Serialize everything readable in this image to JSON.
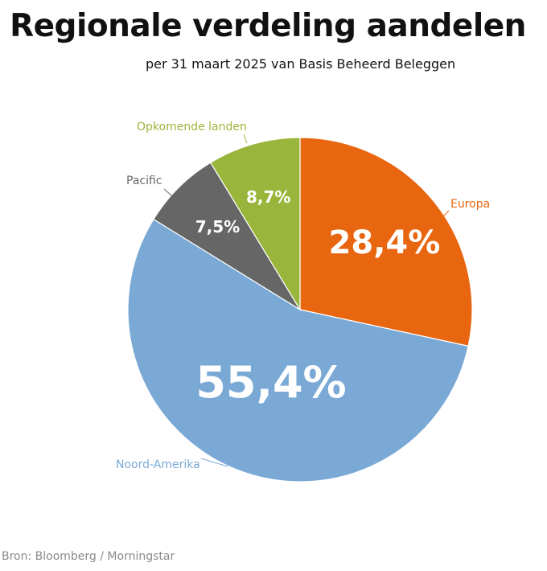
{
  "title": "Regionale verdeling aandelen",
  "subtitle": "per 31 maart 2025 van Basis Beheerd Beleggen",
  "source": "Bron: Bloomberg / Morningstar",
  "chart_data": {
    "type": "pie",
    "title": "Regionale verdeling aandelen",
    "slices": [
      {
        "name": "Europa",
        "value": 28.4,
        "label": "28,4%",
        "color": "#E96610"
      },
      {
        "name": "Noord-Amerika",
        "value": 55.4,
        "label": "55,4%",
        "color": "#7BA9D6"
      },
      {
        "name": "Pacific",
        "value": 7.5,
        "label": "7,5%",
        "color": "#666666"
      },
      {
        "name": "Opkomende landen",
        "value": 8.7,
        "label": "8,7%",
        "color": "#9AB53B"
      }
    ],
    "start": "top",
    "direction": "clockwise",
    "legend": "outside labels with leader lines"
  }
}
